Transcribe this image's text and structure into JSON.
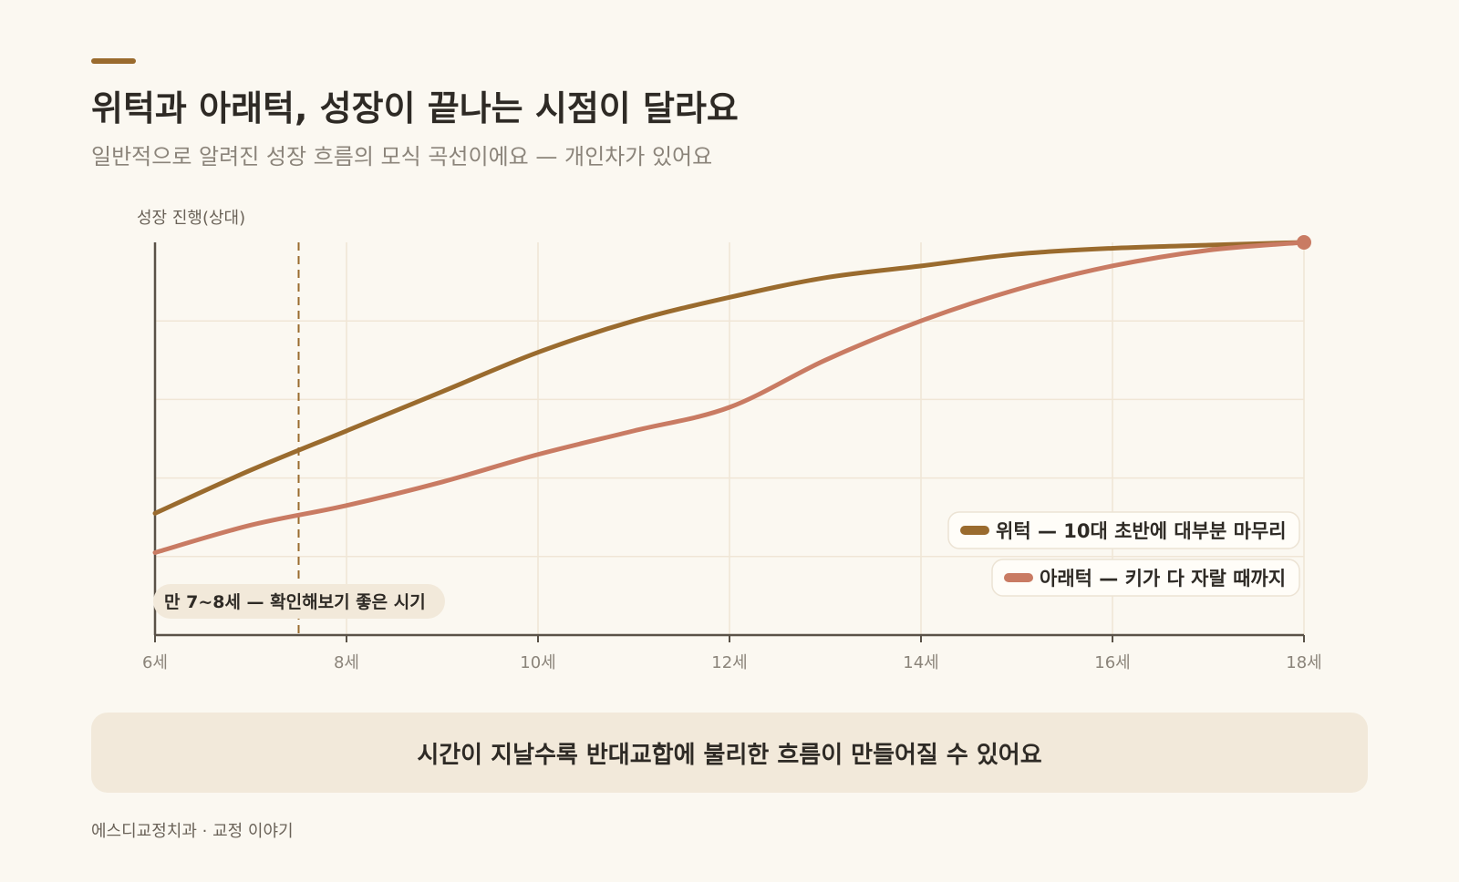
{
  "header": {
    "accent_color": "#9a6b2e",
    "title": "위턱과 아래턱, 성장이 끝나는 시점이 달라요",
    "subtitle": "일반적으로 알려진 성장 흐름의 모식 곡선이에요 — 개인차가 있어요"
  },
  "chart_data": {
    "type": "line",
    "title": "위턱과 아래턱, 성장이 끝나는 시점이 달라요",
    "subtitle": "일반적으로 알려진 성장 흐름의 모식 곡선이에요 — 개인차가 있어요",
    "xlabel": "",
    "ylabel": "성장 진행(상대)",
    "xlim": [
      6,
      18
    ],
    "ylim": [
      0,
      100
    ],
    "x_ticks": [
      6,
      8,
      10,
      12,
      14,
      16,
      18
    ],
    "x_tick_labels": [
      "6세",
      "8세",
      "10세",
      "12세",
      "14세",
      "16세",
      "18세"
    ],
    "grid": true,
    "legend_position": "bottom-right",
    "series": [
      {
        "name": "위턱 — 10대 초반에 대부분 마무리",
        "color": "#9a6b2e",
        "points": [
          [
            6,
            31
          ],
          [
            7,
            42
          ],
          [
            8,
            52
          ],
          [
            9,
            62
          ],
          [
            10,
            72
          ],
          [
            11,
            80
          ],
          [
            12,
            86
          ],
          [
            13,
            91
          ],
          [
            14,
            94
          ],
          [
            15,
            97
          ],
          [
            16,
            98.5
          ],
          [
            17,
            99.3
          ],
          [
            18,
            100
          ]
        ]
      },
      {
        "name": "아래턱 — 키가 다 자랄 때까지",
        "color": "#c97b63",
        "points": [
          [
            6,
            21
          ],
          [
            7,
            28
          ],
          [
            8,
            33
          ],
          [
            9,
            39
          ],
          [
            10,
            46
          ],
          [
            11,
            52
          ],
          [
            12,
            58
          ],
          [
            13,
            70
          ],
          [
            14,
            80
          ],
          [
            15,
            88
          ],
          [
            16,
            94
          ],
          [
            17,
            98
          ],
          [
            18,
            100
          ]
        ]
      }
    ],
    "annotations": [
      {
        "type": "vline",
        "x": 7.5,
        "label": "만 7~8세 — 확인해보기 좋은 시기"
      },
      {
        "type": "endpoint",
        "x": 18,
        "y": 100
      }
    ],
    "axis_color": "#5a5248",
    "grid_color": "#f0e6d6",
    "note_background": "#f2e9da"
  },
  "conclusion": {
    "text": "시간이 지날수록 반대교합에 불리한 흐름이 만들어질 수 있어요",
    "background": "#f2e9da"
  },
  "footer": {
    "text": "에스디교정치과 · 교정 이야기"
  }
}
